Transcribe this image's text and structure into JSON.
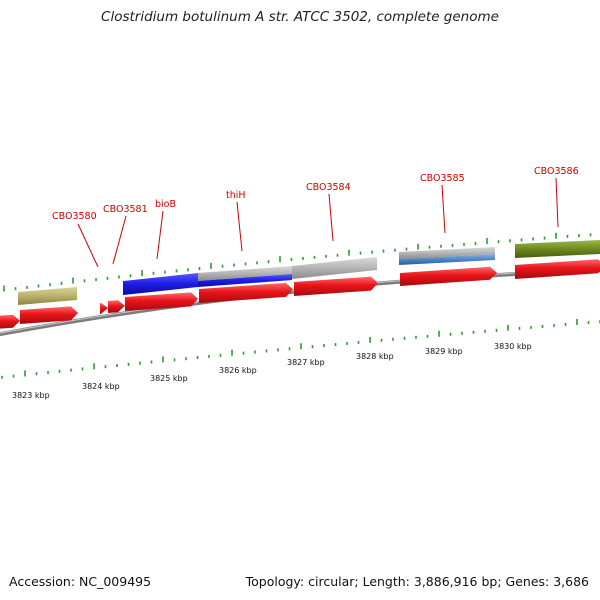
{
  "title": "Clostridium botulinum A str. ATCC 3502, complete genome",
  "footer": {
    "accession": "Accession: NC_009495",
    "stats": "Topology: circular; Length: 3,886,916 bp; Genes: 3,686"
  },
  "colors": {
    "cds_forward": "#e8141a",
    "backbone": "#8a8a8a",
    "feature_tan": "#b9b26a",
    "feature_blue": "#1c1ce6",
    "feature_gray": "#b4b4b4",
    "feature_steelblue": "#4f86c2",
    "feature_olive": "#6f8a1f",
    "tick": "#2f9a2f",
    "label": "#cc0000"
  },
  "genes": [
    {
      "name": "CBO3580"
    },
    {
      "name": "CBO3581"
    },
    {
      "name": "bioB"
    },
    {
      "name": "thiH"
    },
    {
      "name": "CBO3584"
    },
    {
      "name": "CBO3585"
    },
    {
      "name": "CBO3586"
    }
  ],
  "scale": [
    {
      "label": "3823 kbp"
    },
    {
      "label": "3824 kbp"
    },
    {
      "label": "3825 kbp"
    },
    {
      "label": "3826 kbp"
    },
    {
      "label": "3827 kbp"
    },
    {
      "label": "3828 kbp"
    },
    {
      "label": "3829 kbp"
    },
    {
      "label": "3830 kbp"
    }
  ]
}
